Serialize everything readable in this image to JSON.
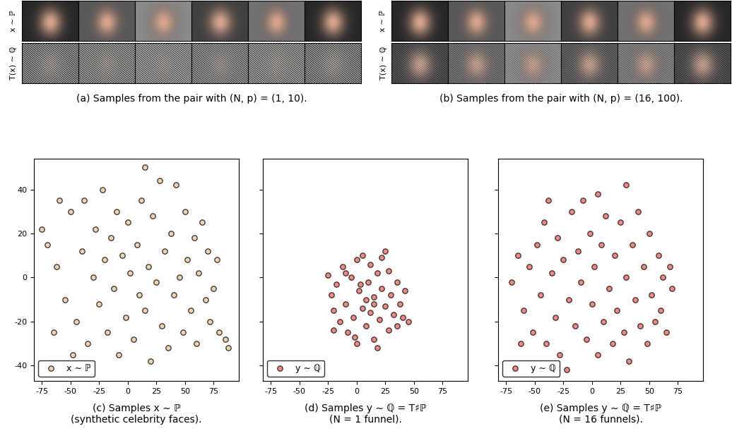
{
  "image_panels": [
    {
      "caption": "(a) Samples from the pair with (N, p) = (1, 10).",
      "row_labels": [
        "x ∼ ℙ",
        "T(x) ∼ ℚ"
      ],
      "columns": 6
    },
    {
      "caption": "(b) Samples from the pair with (N, p) = (16, 100).",
      "row_labels": [
        "x ∼ ℙ",
        "T(x) ∼ ℚ"
      ],
      "columns": 6
    }
  ],
  "chart_data": [
    {
      "type": "scatter",
      "title": "(c) Samples x ∼ ℙ\n(synthetic celebrity faces).",
      "xlim": [
        -82,
        97
      ],
      "ylim": [
        -47,
        54
      ],
      "xticks": [
        -75,
        -50,
        -25,
        0,
        25,
        50,
        75
      ],
      "yticks": [
        -40,
        -20,
        0,
        20,
        40
      ],
      "legend": "lower left",
      "series": [
        {
          "name": "x ∼ ℙ",
          "color": "#e8d5b5",
          "marker": "o",
          "x": [
            -75,
            -70,
            -62,
            -55,
            -50,
            -45,
            -40,
            -38,
            -35,
            -30,
            -28,
            -25,
            -22,
            -20,
            -18,
            -15,
            -12,
            -10,
            -8,
            -5,
            -2,
            0,
            2,
            5,
            8,
            10,
            12,
            15,
            15,
            18,
            20,
            22,
            25,
            28,
            30,
            32,
            35,
            38,
            40,
            42,
            45,
            48,
            50,
            52,
            55,
            58,
            60,
            62,
            65,
            68,
            70,
            72,
            75,
            78,
            80,
            85,
            88,
            -65,
            -60,
            -48
          ],
          "y": [
            22,
            15,
            5,
            -10,
            30,
            -20,
            12,
            35,
            -30,
            0,
            22,
            -12,
            40,
            8,
            -25,
            18,
            -5,
            30,
            -35,
            10,
            -18,
            25,
            2,
            -28,
            15,
            -8,
            35,
            50,
            -15,
            5,
            -38,
            28,
            -2,
            44,
            -22,
            12,
            -32,
            20,
            -8,
            42,
            0,
            -25,
            30,
            8,
            -15,
            18,
            -30,
            2,
            25,
            -10,
            12,
            -20,
            -5,
            8,
            -25,
            -28,
            -32,
            -25,
            35,
            -35
          ]
        }
      ]
    },
    {
      "type": "scatter",
      "title": "(d) Samples y ∼ ℚ = T♯ℙ\n(N = 1 funnel).",
      "xlim": [
        -82,
        97
      ],
      "ylim": [
        -47,
        54
      ],
      "xticks": [
        -75,
        -50,
        -25,
        0,
        25,
        50,
        75
      ],
      "yticks": [
        -40,
        -20,
        0,
        20,
        40
      ],
      "tick_labels": "x",
      "legend": "lower left",
      "series": [
        {
          "name": "y ∼ ℚ",
          "color": "#e88a8a",
          "marker": "o",
          "x": [
            -25,
            -22,
            -20,
            -18,
            -15,
            -12,
            -10,
            -8,
            -5,
            -3,
            0,
            0,
            2,
            5,
            5,
            8,
            10,
            12,
            12,
            15,
            15,
            18,
            20,
            22,
            22,
            25,
            28,
            28,
            30,
            32,
            35,
            35,
            38,
            40,
            42,
            45,
            -20,
            -10,
            18,
            25,
            -2,
            8,
            3,
            15
          ],
          "y": [
            1,
            -8,
            -15,
            -3,
            -20,
            5,
            -12,
            -25,
            0,
            -18,
            8,
            -30,
            -6,
            -14,
            10,
            -22,
            -2,
            -16,
            6,
            -9,
            -28,
            2,
            -19,
            -5,
            9,
            -13,
            -24,
            3,
            -8,
            -17,
            -2,
            -22,
            -12,
            -18,
            -6,
            -20,
            -24,
            2,
            -32,
            12,
            -27,
            -10,
            -3,
            -12
          ]
        }
      ]
    },
    {
      "type": "scatter",
      "title": "(e) Samples y ∼ ℚ = T♯ℙ\n(N = 16 funnels).",
      "xlim": [
        -82,
        97
      ],
      "ylim": [
        -47,
        54
      ],
      "xticks": [
        -75,
        -50,
        -25,
        0,
        25,
        50,
        75
      ],
      "yticks": [
        -40,
        -20,
        0,
        20,
        40
      ],
      "tick_labels": "x",
      "legend": "lower left",
      "series": [
        {
          "name": "y ∼ ℚ",
          "color": "#e88a8a",
          "marker": "o",
          "x": [
            -70,
            -65,
            -60,
            -55,
            -52,
            -48,
            -45,
            -42,
            -40,
            -35,
            -32,
            -30,
            -28,
            -25,
            -22,
            -20,
            -18,
            -15,
            -12,
            -10,
            -8,
            -5,
            -2,
            0,
            2,
            5,
            5,
            8,
            10,
            12,
            15,
            18,
            20,
            22,
            25,
            28,
            30,
            30,
            32,
            35,
            38,
            40,
            42,
            45,
            48,
            50,
            52,
            55,
            58,
            60,
            62,
            65,
            68,
            70,
            -62,
            -38
          ],
          "y": [
            -2,
            10,
            -15,
            5,
            -25,
            15,
            -8,
            25,
            -30,
            2,
            -18,
            18,
            -35,
            8,
            -42,
            -10,
            30,
            -22,
            12,
            -2,
            35,
            -28,
            20,
            -12,
            5,
            -35,
            38,
            15,
            -20,
            28,
            -5,
            -30,
            10,
            -15,
            25,
            -25,
            42,
            0,
            -38,
            15,
            -10,
            30,
            -22,
            5,
            -30,
            20,
            -8,
            -20,
            10,
            -15,
            0,
            -25,
            5,
            -5,
            -30,
            35
          ]
        }
      ]
    }
  ]
}
